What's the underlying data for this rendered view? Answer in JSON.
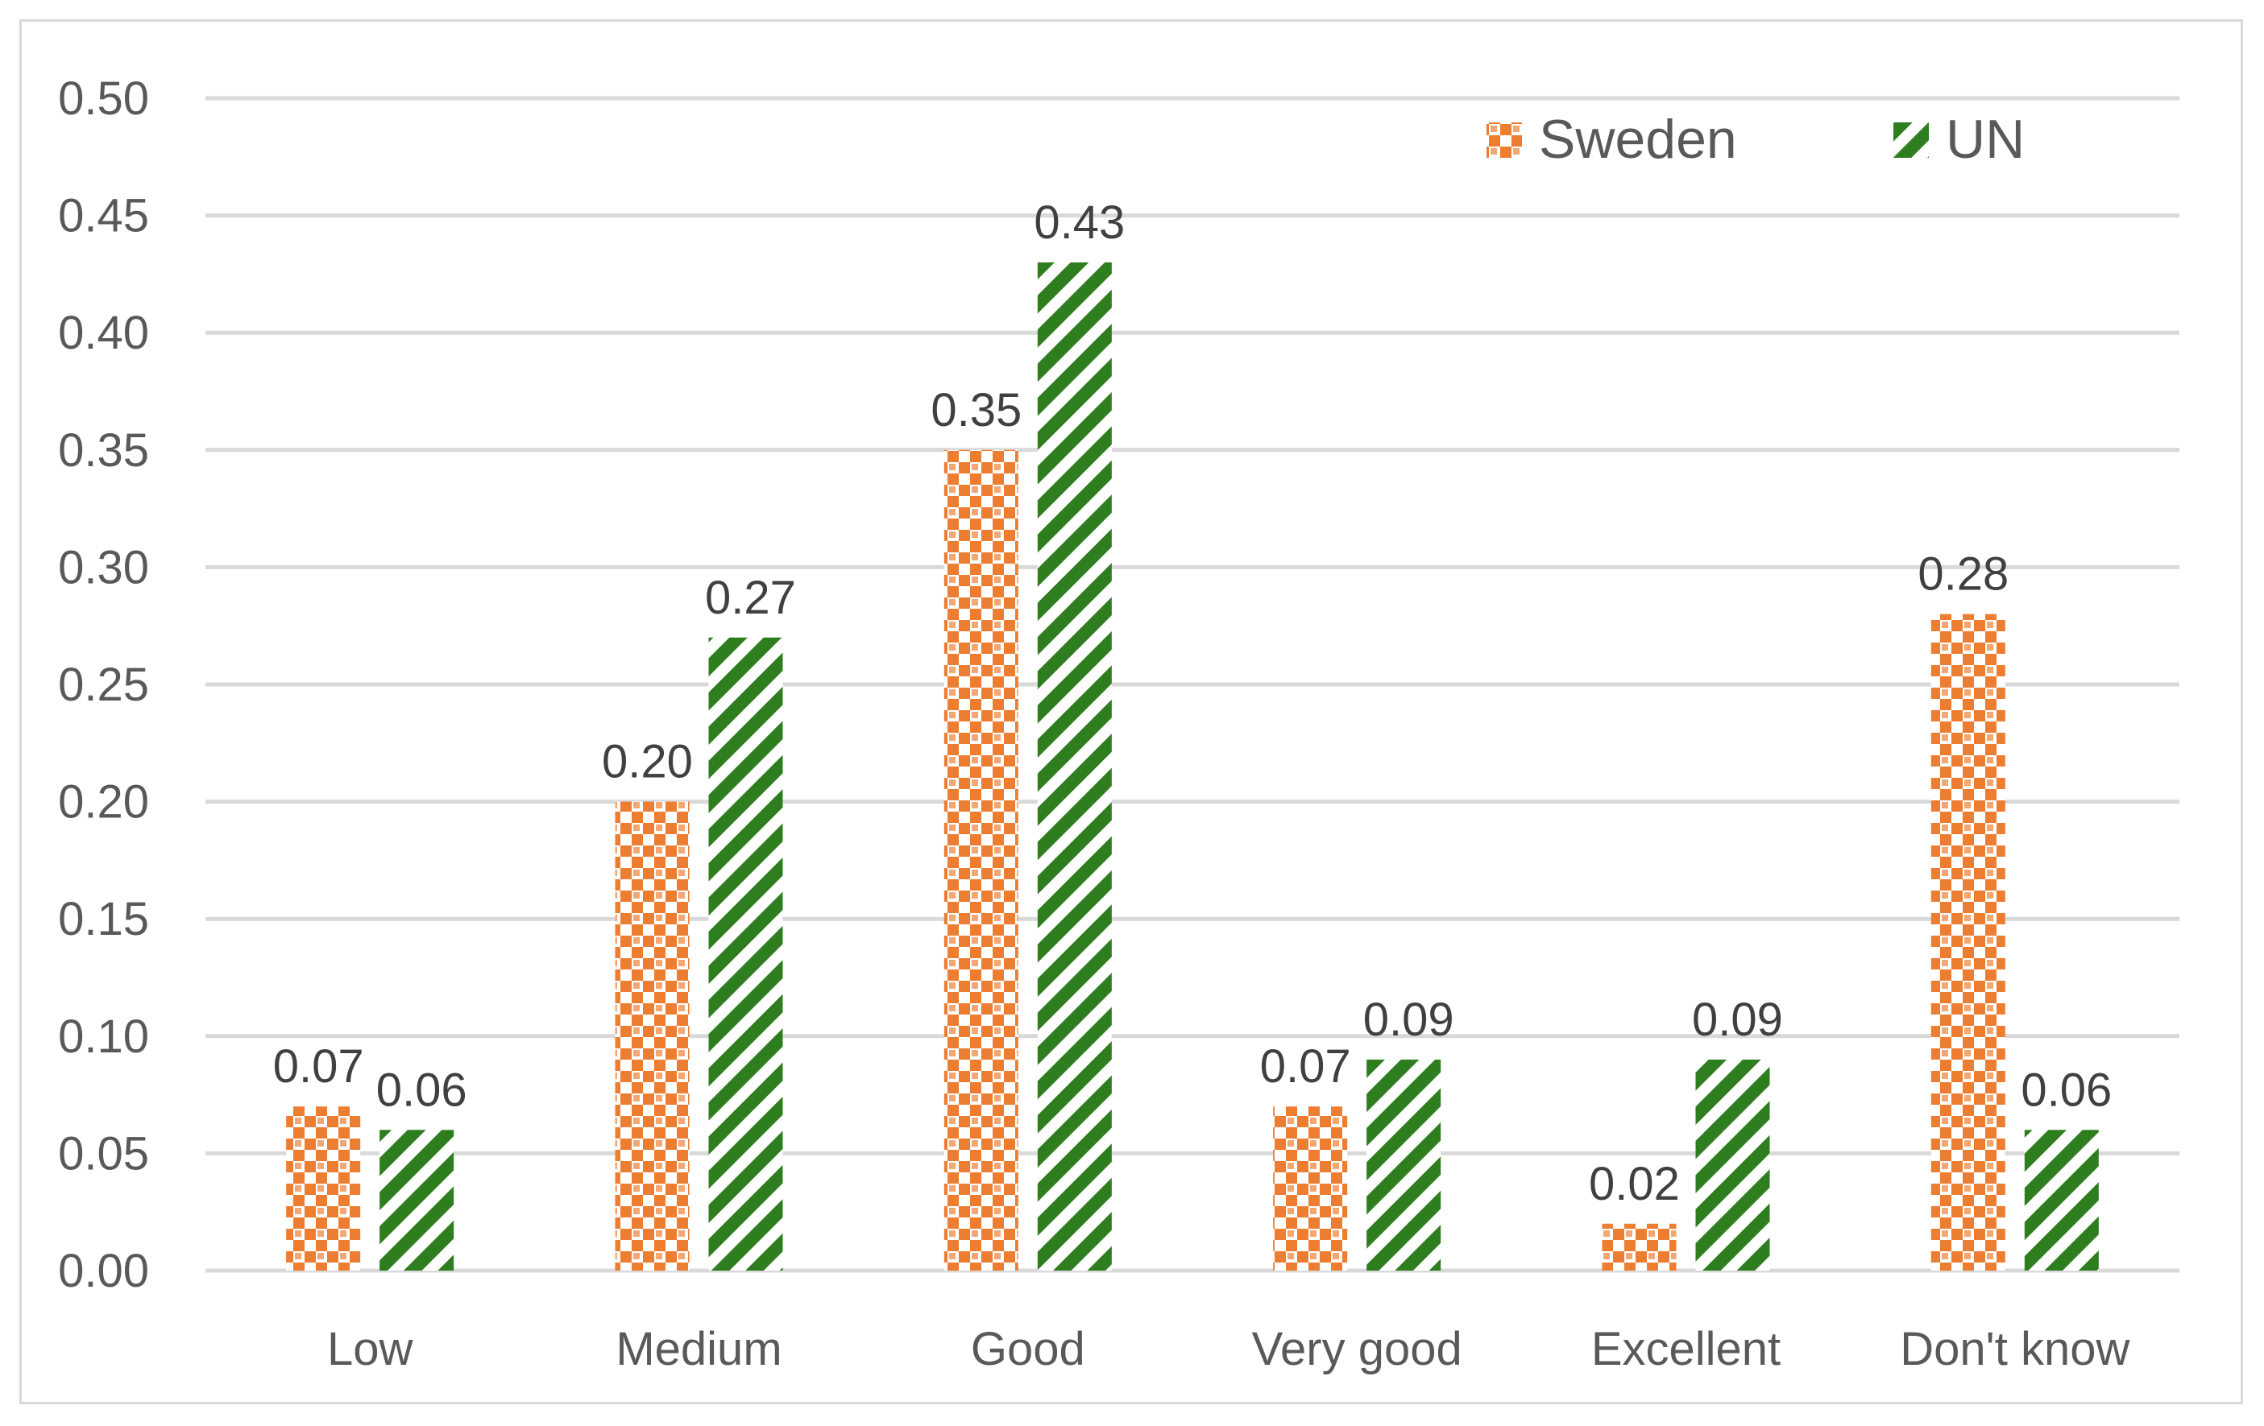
{
  "chart_data": {
    "type": "bar",
    "title": "",
    "xlabel": "",
    "ylabel": "",
    "categories": [
      "Low",
      "Medium",
      "Good",
      "Very good",
      "Excellent",
      "Don't know"
    ],
    "series": [
      {
        "name": "Sweden",
        "color": "#ed7d31",
        "pattern": "checker",
        "values": [
          0.07,
          0.2,
          0.35,
          0.07,
          0.02,
          0.28
        ],
        "labels": [
          "0.07",
          "0.20",
          "0.35",
          "0.07",
          "0.02",
          "0.28"
        ]
      },
      {
        "name": "UN",
        "color": "#2e7d1e",
        "pattern": "diagonal-stripes",
        "values": [
          0.06,
          0.27,
          0.43,
          0.09,
          0.09,
          0.06
        ],
        "labels": [
          "0.06",
          "0.27",
          "0.43",
          "0.09",
          "0.09",
          "0.06"
        ]
      }
    ],
    "yticks": [
      "0.00",
      "0.05",
      "0.10",
      "0.15",
      "0.20",
      "0.25",
      "0.30",
      "0.35",
      "0.40",
      "0.45",
      "0.50"
    ],
    "ylim": [
      0,
      0.5
    ],
    "grid": true,
    "legend_position": "top-right"
  }
}
